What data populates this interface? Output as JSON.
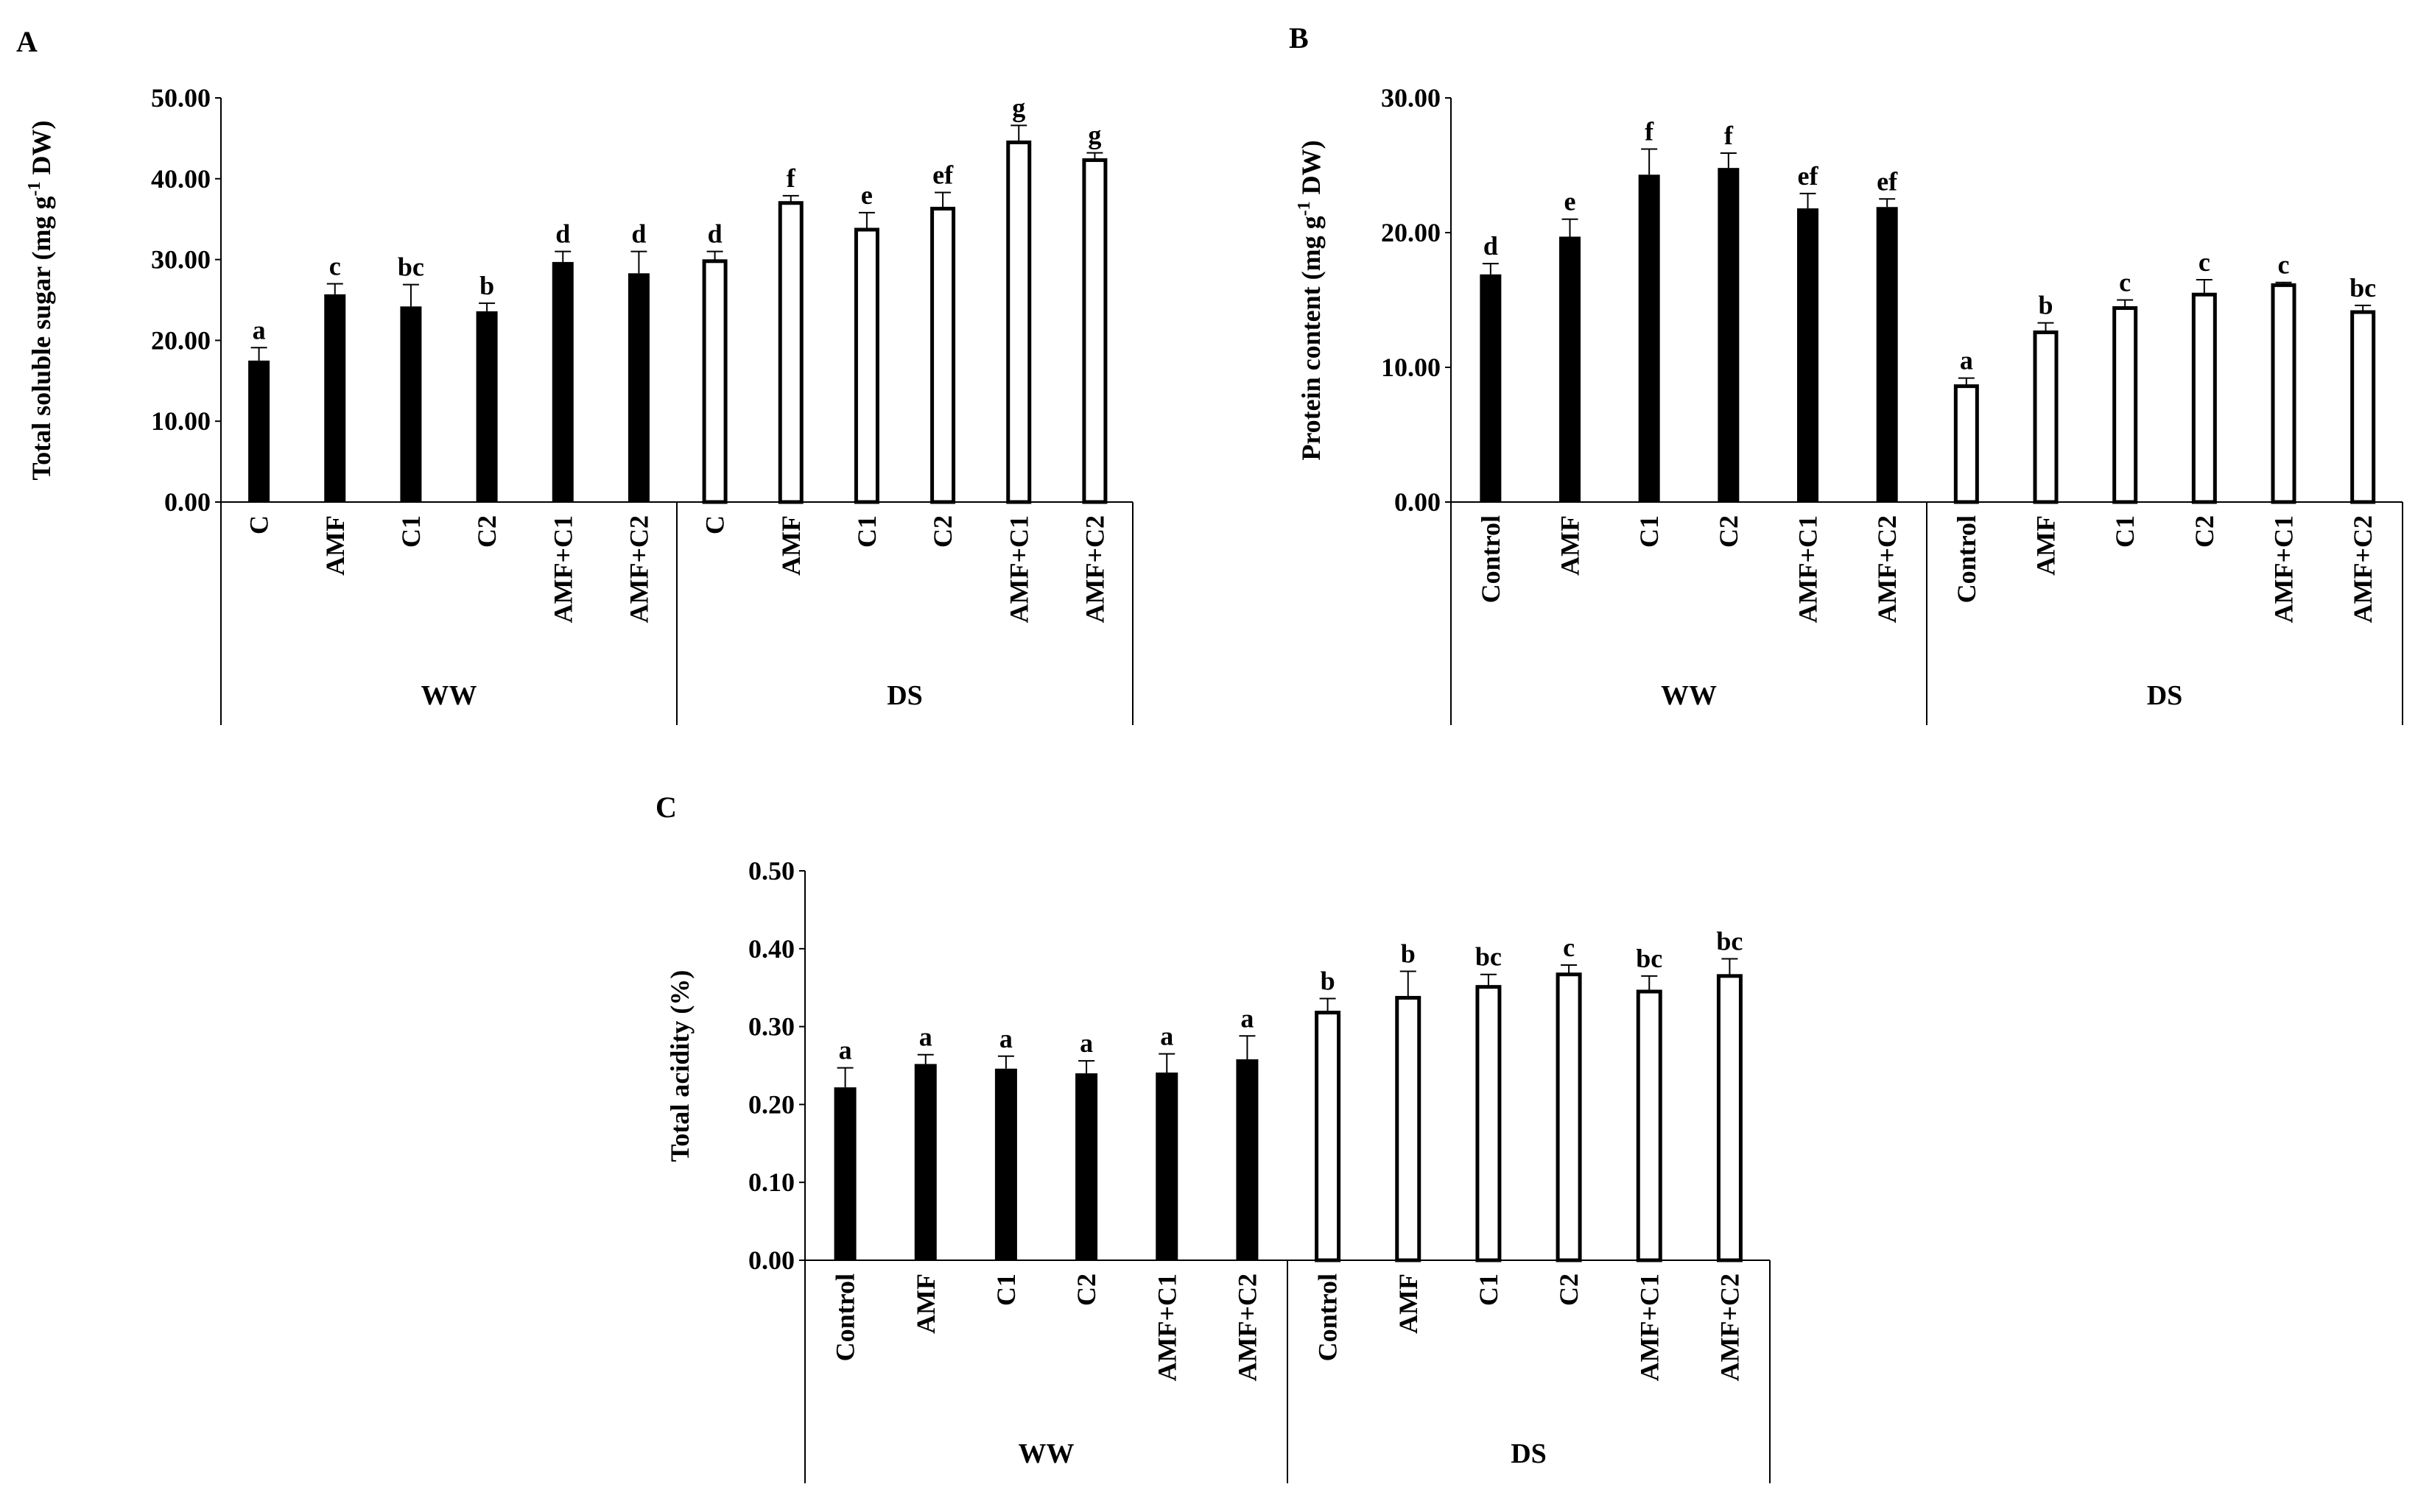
{
  "chart_data": [
    {
      "panel": "A",
      "type": "bar",
      "ylabel_main": "Total soluble sugar (mg g",
      "ylabel_sup": "-1",
      "ylabel_end": " DW)",
      "ylim": [
        0,
        50
      ],
      "ytick_values": [
        0,
        10,
        20,
        30,
        40,
        50
      ],
      "ytick_labels": [
        "0.00",
        "10.00",
        "20.00",
        "30.00",
        "40.00",
        "50.00"
      ],
      "groups": [
        {
          "name": "WW",
          "fill": "solid",
          "categories": [
            "C",
            "AMF",
            "C1",
            "C2",
            "AMF+C1",
            "AMF+C2"
          ],
          "values": [
            17.5,
            25.7,
            24.2,
            23.6,
            29.7,
            28.3
          ],
          "errors": [
            1.6,
            1.3,
            2.7,
            1.0,
            1.3,
            2.7
          ],
          "letters": [
            "a",
            "c",
            "bc",
            "b",
            "d",
            "d"
          ]
        },
        {
          "name": "DS",
          "fill": "hollow",
          "categories": [
            "C",
            "AMF",
            "C1",
            "C2",
            "AMF+C1",
            "AMF+C2"
          ],
          "values": [
            29.8,
            37.0,
            33.7,
            36.3,
            44.5,
            42.3
          ],
          "errors": [
            1.2,
            0.9,
            2.1,
            2.0,
            2.1,
            0.9
          ],
          "letters": [
            "d",
            "f",
            "e",
            "ef",
            "g",
            "g"
          ]
        }
      ]
    },
    {
      "panel": "B",
      "type": "bar",
      "ylabel_main": "Protein  content  (mg g",
      "ylabel_sup": "-1",
      "ylabel_end": " DW)",
      "ylim": [
        0,
        30
      ],
      "ytick_values": [
        0,
        10,
        20,
        30
      ],
      "ytick_labels": [
        "0.00",
        "10.00",
        "20.00",
        "30.00"
      ],
      "groups": [
        {
          "name": "WW",
          "fill": "solid",
          "categories": [
            "Control",
            "AMF",
            "C1",
            "C2",
            "AMF+C1",
            "AMF+C2"
          ],
          "values": [
            16.9,
            19.7,
            24.3,
            24.8,
            21.8,
            21.9
          ],
          "errors": [
            0.8,
            1.3,
            1.9,
            1.1,
            1.1,
            0.6
          ],
          "letters": [
            "d",
            "e",
            "f",
            "f",
            "ef",
            "ef"
          ]
        },
        {
          "name": "DS",
          "fill": "hollow",
          "categories": [
            "Control",
            "AMF",
            "C1",
            "C2",
            "AMF+C1",
            "AMF+C2"
          ],
          "values": [
            8.6,
            12.6,
            14.4,
            15.4,
            16.1,
            14.1
          ],
          "errors": [
            0.6,
            0.7,
            0.6,
            1.1,
            0.2,
            0.5
          ],
          "letters": [
            "a",
            "b",
            "c",
            "c",
            "c",
            "bc"
          ]
        }
      ]
    },
    {
      "panel": "C",
      "type": "bar",
      "ylabel_main": "Total acidity (%)",
      "ylabel_sup": "",
      "ylabel_end": "",
      "ylim": [
        0,
        0.5
      ],
      "ytick_values": [
        0,
        0.1,
        0.2,
        0.3,
        0.4,
        0.5
      ],
      "ytick_labels": [
        "0.00",
        "0.10",
        "0.20",
        "0.30",
        "0.40",
        "0.50"
      ],
      "groups": [
        {
          "name": "WW",
          "fill": "solid",
          "categories": [
            "Control",
            "AMF",
            "C1",
            "C2",
            "AMF+C1",
            "AMF+C2"
          ],
          "values": [
            0.222,
            0.252,
            0.246,
            0.24,
            0.241,
            0.258
          ],
          "errors": [
            0.025,
            0.012,
            0.016,
            0.016,
            0.024,
            0.03
          ],
          "letters": [
            "a",
            "a",
            "a",
            "a",
            "a",
            "a"
          ]
        },
        {
          "name": "DS",
          "fill": "hollow",
          "categories": [
            "Control",
            "AMF",
            "C1",
            "C2",
            "AMF+C1",
            "AMF+C2"
          ],
          "values": [
            0.318,
            0.337,
            0.351,
            0.367,
            0.345,
            0.365
          ],
          "errors": [
            0.018,
            0.034,
            0.016,
            0.012,
            0.02,
            0.022
          ],
          "letters": [
            "b",
            "b",
            "bc",
            "c",
            "bc",
            "bc"
          ]
        }
      ]
    }
  ]
}
